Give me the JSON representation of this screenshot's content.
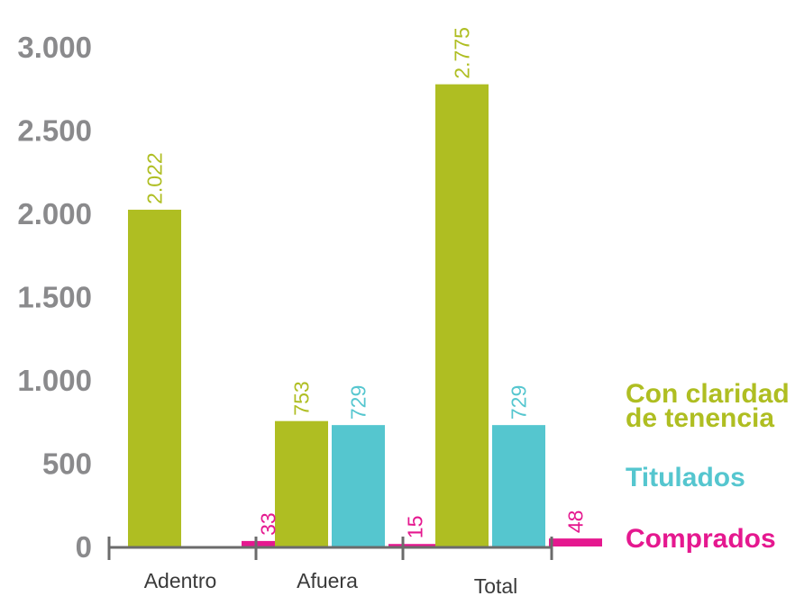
{
  "chart_data": {
    "type": "bar",
    "categories": [
      "Adentro",
      "Afuera",
      "Total"
    ],
    "series": [
      {
        "name": "Con claridad de tenencia",
        "color": "#afbe22",
        "values": [
          2022,
          753,
          2775
        ]
      },
      {
        "name": "Titulados",
        "color": "#55c6cf",
        "values": [
          null,
          729,
          729
        ]
      },
      {
        "name": "Comprados",
        "color": "#e5188f",
        "values": [
          33,
          15,
          48
        ]
      }
    ],
    "value_labels": [
      [
        "2.022",
        "",
        "33"
      ],
      [
        "753",
        "729",
        "15"
      ],
      [
        "2.775",
        "729",
        "48"
      ]
    ],
    "yticks": [
      0,
      500,
      1000,
      1500,
      2000,
      2500,
      3000
    ],
    "ytick_labels": [
      "0",
      "500",
      "1.000",
      "1.500",
      "2.000",
      "2.500",
      "3.000"
    ],
    "ylim": [
      0,
      3000
    ],
    "grid": false,
    "legend_position": "right"
  },
  "legend": {
    "items": [
      {
        "label_line1": "Con claridad",
        "label_line2": "de tenencia",
        "color": "#afbe22"
      },
      {
        "label_line1": "Titulados",
        "label_line2": "",
        "color": "#55c6cf"
      },
      {
        "label_line1": "Comprados",
        "label_line2": "",
        "color": "#e5188f"
      }
    ]
  },
  "axis_color": "#6b6b6b"
}
